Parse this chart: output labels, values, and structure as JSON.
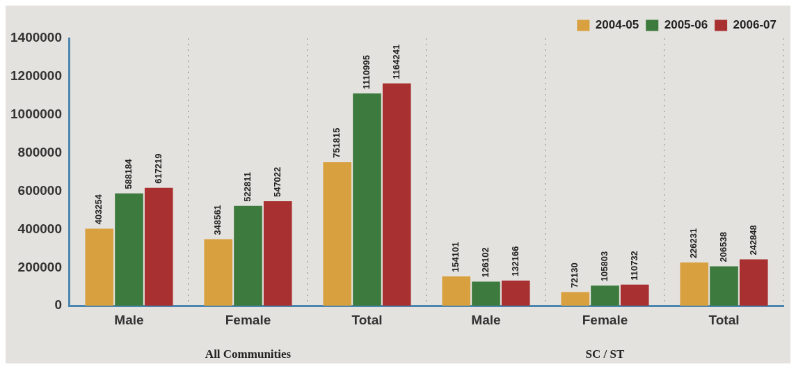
{
  "chart_data": {
    "type": "bar",
    "categories": [
      "Male",
      "Female",
      "Total",
      "Male",
      "Female",
      "Total"
    ],
    "series": [
      {
        "name": "2004-05",
        "color": "#d9a040",
        "values": [
          403254,
          348561,
          751815,
          154101,
          72130,
          226231
        ]
      },
      {
        "name": "2005-06",
        "color": "#3d7a3d",
        "values": [
          588184,
          522811,
          1110995,
          126102,
          105803,
          206538
        ]
      },
      {
        "name": "2006-07",
        "color": "#a83030",
        "values": [
          617219,
          547022,
          1164241,
          132166,
          110732,
          242848
        ]
      }
    ],
    "ylim": [
      0,
      1400000
    ],
    "yticks": [
      0,
      200000,
      400000,
      600000,
      800000,
      1000000,
      1200000,
      1400000
    ],
    "grid": "x",
    "legend": "top right",
    "data_labels": true,
    "annotations": [
      "All Communities",
      "SC / ST"
    ]
  }
}
